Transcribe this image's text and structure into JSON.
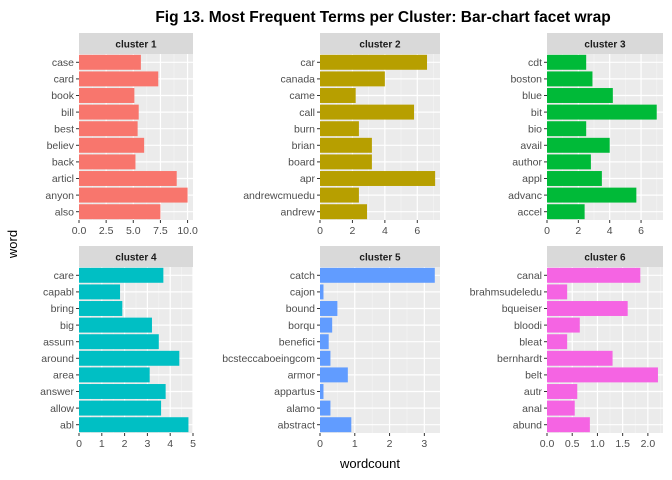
{
  "chart_data": {
    "type": "bar",
    "orientation": "horizontal",
    "title": "Fig 13. Most Frequent Terms per Cluster: Bar-chart facet wrap",
    "xlabel": "wordcount",
    "ylabel": "word",
    "grid": true,
    "legend": "none",
    "panels": [
      {
        "name": "cluster 1",
        "color": "#F8766D",
        "xlim": [
          0,
          10.5
        ],
        "xticks": [
          0,
          2.5,
          5,
          7.5,
          10
        ],
        "xtick_labels": [
          "0.0",
          "2.5",
          "5.0",
          "7.5",
          "10.0"
        ],
        "categories": [
          "also",
          "anyon",
          "articl",
          "back",
          "believ",
          "best",
          "bill",
          "book",
          "card",
          "case"
        ],
        "values": [
          7.5,
          10,
          9,
          5.2,
          6,
          5.4,
          5.5,
          5.1,
          7.3,
          5.7
        ]
      },
      {
        "name": "cluster 2",
        "color": "#B79F00",
        "xlim": [
          0,
          7.4
        ],
        "xticks": [
          0,
          2,
          4,
          6
        ],
        "xtick_labels": [
          "0",
          "2",
          "4",
          "6"
        ],
        "categories": [
          "andrew",
          "andrewcmuedu",
          "apr",
          "board",
          "brian",
          "burn",
          "call",
          "came",
          "canada",
          "car"
        ],
        "values": [
          2.9,
          2.4,
          7.1,
          3.2,
          3.2,
          2.4,
          5.8,
          2.2,
          4.0,
          6.6
        ]
      },
      {
        "name": "cluster 3",
        "color": "#00BA38",
        "xlim": [
          0,
          7.4
        ],
        "xticks": [
          0,
          2,
          4,
          6
        ],
        "xtick_labels": [
          "0",
          "2",
          "4",
          "6"
        ],
        "categories": [
          "accel",
          "advanc",
          "appl",
          "author",
          "avail",
          "bio",
          "bit",
          "blue",
          "boston",
          "cdt"
        ],
        "values": [
          2.4,
          5.7,
          3.5,
          2.8,
          4.0,
          2.5,
          7.0,
          4.2,
          2.9,
          2.5
        ]
      },
      {
        "name": "cluster 4",
        "color": "#00BFC4",
        "xlim": [
          0,
          5.0
        ],
        "xticks": [
          0,
          1,
          2,
          3,
          4,
          5
        ],
        "xtick_labels": [
          "0",
          "1",
          "2",
          "3",
          "4",
          "5"
        ],
        "categories": [
          "abl",
          "allow",
          "answer",
          "area",
          "around",
          "assum",
          "big",
          "bring",
          "capabl",
          "care"
        ],
        "values": [
          4.8,
          3.6,
          3.8,
          3.1,
          4.4,
          3.5,
          3.2,
          1.9,
          1.8,
          3.7
        ]
      },
      {
        "name": "cluster 5",
        "color": "#619CFF",
        "xlim": [
          0,
          3.45
        ],
        "xticks": [
          0,
          1,
          2,
          3
        ],
        "xtick_labels": [
          "0",
          "1",
          "2",
          "3"
        ],
        "categories": [
          "abstract",
          "alamo",
          "appartus",
          "armor",
          "bcsteccaboeingcom",
          "benefici",
          "borqu",
          "bound",
          "cajon",
          "catch"
        ],
        "values": [
          0.9,
          0.3,
          0.1,
          0.8,
          0.3,
          0.25,
          0.35,
          0.5,
          0.1,
          3.3
        ]
      },
      {
        "name": "cluster 6",
        "color": "#F564E3",
        "xlim": [
          0,
          2.3
        ],
        "xticks": [
          0,
          0.5,
          1.0,
          1.5,
          2.0
        ],
        "xtick_labels": [
          "0.0",
          "0.5",
          "1.0",
          "1.5",
          "2.0"
        ],
        "categories": [
          "abund",
          "anal",
          "autr",
          "belt",
          "bernhardt",
          "bleat",
          "bloodi",
          "bqueiser",
          "brahmsudeledu",
          "canal"
        ],
        "values": [
          0.85,
          0.55,
          0.6,
          2.2,
          1.3,
          0.4,
          0.65,
          1.6,
          0.4,
          1.85
        ]
      }
    ]
  }
}
